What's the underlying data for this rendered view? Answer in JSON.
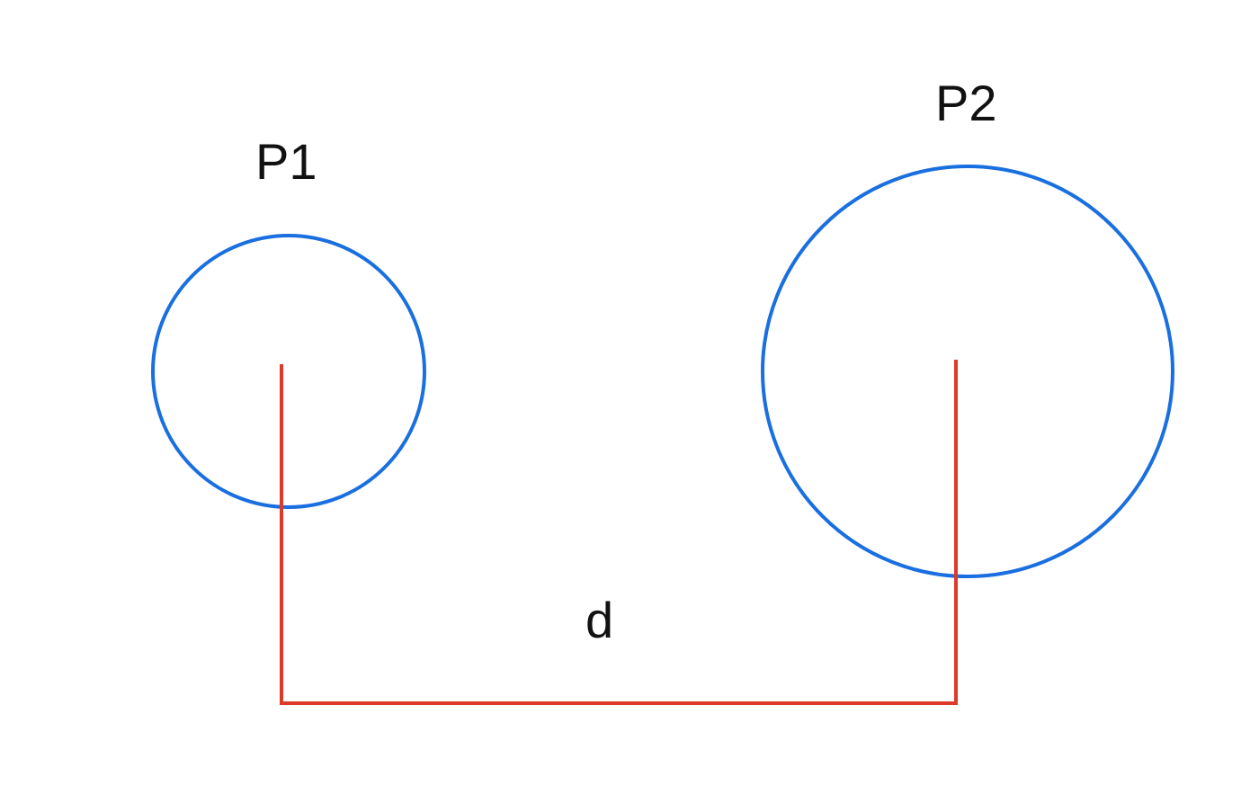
{
  "diagram": {
    "labels": {
      "p1": "P1",
      "p2": "P2",
      "distance": "d"
    },
    "colors": {
      "circle": "#1a6fe0",
      "connector": "#de3a2a",
      "text": "#111111"
    }
  }
}
